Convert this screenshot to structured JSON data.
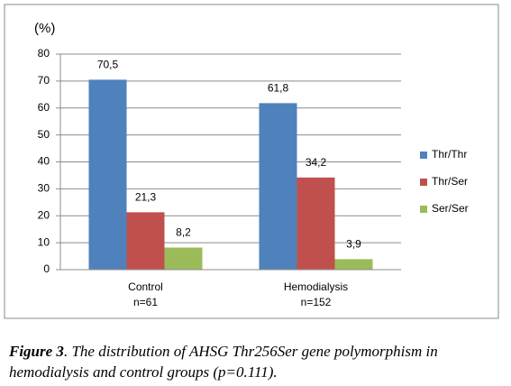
{
  "chart_data": {
    "type": "bar",
    "ylabel": "(%)",
    "categories": [
      [
        "Control",
        "n=61"
      ],
      [
        "Hemodialysis",
        "n=152"
      ]
    ],
    "series": [
      {
        "name": "Thr/Thr",
        "color": "#4f81bd",
        "values": [
          70.5,
          61.8
        ],
        "value_labels": [
          "70,5",
          "61,8"
        ]
      },
      {
        "name": "Thr/Ser",
        "color": "#c0504d",
        "values": [
          21.3,
          34.2
        ],
        "value_labels": [
          "21,3",
          "34,2"
        ]
      },
      {
        "name": "Ser/Ser",
        "color": "#9bbb59",
        "values": [
          8.2,
          3.9
        ],
        "value_labels": [
          "8,2",
          "3,9"
        ]
      }
    ],
    "ylim": [
      0,
      80
    ],
    "yticks": [
      0,
      10,
      20,
      30,
      40,
      50,
      60,
      70,
      80
    ],
    "grid": true,
    "legend": "right"
  },
  "caption": {
    "label": "Figure 3",
    "text": ". The distribution of AHSG Thr256Ser gene polymorphism in hemodialysis and control groups (p=0.111)."
  }
}
